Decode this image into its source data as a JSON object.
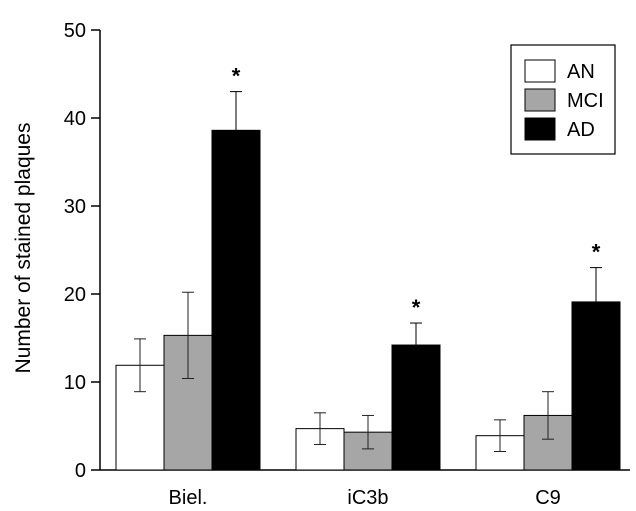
{
  "chart_data": {
    "type": "bar",
    "title": "",
    "xlabel": "",
    "ylabel": "Number of stained plaques",
    "ylim": [
      0,
      50
    ],
    "yticks": [
      0,
      10,
      20,
      30,
      40,
      50
    ],
    "grid": false,
    "legend_position": "top-right",
    "categories": [
      "Biel.",
      "iC3b",
      "C9"
    ],
    "series": [
      {
        "name": "AN",
        "color": "#ffffff",
        "values": [
          11.9,
          4.7,
          3.9
        ],
        "errors": [
          3.0,
          1.8,
          1.8
        ]
      },
      {
        "name": "MCI",
        "color": "#a6a6a6",
        "values": [
          15.3,
          4.3,
          6.2
        ],
        "errors": [
          4.9,
          1.9,
          2.7
        ]
      },
      {
        "name": "AD",
        "color": "#000000",
        "values": [
          38.6,
          14.2,
          19.1
        ],
        "errors": [
          4.4,
          2.5,
          3.9
        ]
      }
    ],
    "annotations": [
      {
        "category": "Biel.",
        "series": "AD",
        "text": "*"
      },
      {
        "category": "iC3b",
        "series": "AD",
        "text": "*"
      },
      {
        "category": "C9",
        "series": "AD",
        "text": "*"
      }
    ]
  }
}
